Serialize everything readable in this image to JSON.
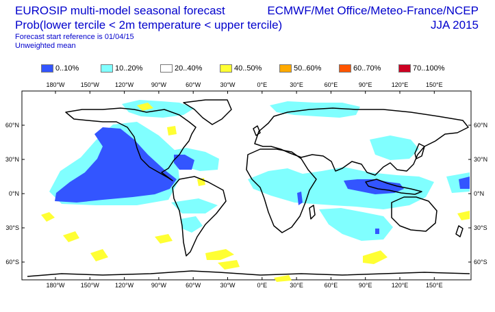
{
  "header": {
    "title_line1": "EUROSIP multi-model seasonal forecast",
    "title_line2": "Prob(lower tercile < 2m temperature < upper tercile)",
    "start_reference": "Forecast start reference is 01/04/15",
    "mean_type": "Unweighted mean",
    "centres": "ECMWF/Met Office/Meteo-France/NCEP",
    "season": "JJA 2015"
  },
  "legend": {
    "items": [
      {
        "label": "0..10%",
        "color": "#3355ff"
      },
      {
        "label": "10..20%",
        "color": "#80ffff"
      },
      {
        "label": "20..40%",
        "color": "#ffffff"
      },
      {
        "label": "40..50%",
        "color": "#ffff33"
      },
      {
        "label": "50..60%",
        "color": "#ffaa00"
      },
      {
        "label": "60..70%",
        "color": "#ff5500"
      },
      {
        "label": "70..100%",
        "color": "#cc0022"
      }
    ]
  },
  "map": {
    "lon_ticks": [
      "180°W",
      "150°W",
      "120°W",
      "90°W",
      "60°W",
      "30°W",
      "0°E",
      "30°E",
      "60°E",
      "90°E",
      "120°E",
      "150°E"
    ],
    "lat_ticks": [
      "60°N",
      "30°N",
      "0°N",
      "30°S",
      "60°S"
    ]
  }
}
